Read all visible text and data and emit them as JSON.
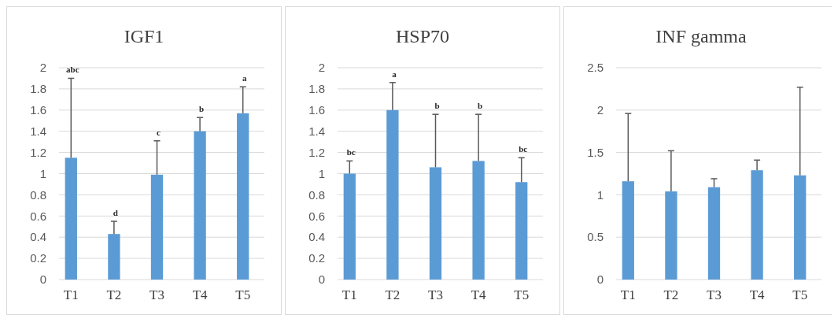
{
  "chart_data": [
    {
      "type": "bar",
      "title": "IGF1",
      "categories": [
        "T1",
        "T2",
        "T3",
        "T4",
        "T5"
      ],
      "values": [
        1.15,
        0.43,
        0.99,
        1.4,
        1.57
      ],
      "errors": [
        [
          1.15,
          1.9
        ],
        [
          0.43,
          0.55
        ],
        [
          0.99,
          1.31
        ],
        [
          1.4,
          1.53
        ],
        [
          1.57,
          1.82
        ]
      ],
      "color": "#5b9bd5",
      "ylim": [
        0,
        2
      ],
      "yticks": [
        0,
        0.2,
        0.4,
        0.6,
        0.8,
        1,
        1.2,
        1.4,
        1.6,
        1.8,
        2
      ],
      "grid": "y",
      "annotations": [
        {
          "text": "abc",
          "x": "T1",
          "y": 1.9
        },
        {
          "text": "d",
          "x": "T2",
          "y": 0.55
        },
        {
          "text": "c",
          "x": "T3",
          "y": 1.31
        },
        {
          "text": "b",
          "x": "T4",
          "y": 1.53
        },
        {
          "text": "a",
          "x": "T5",
          "y": 1.82
        }
      ]
    },
    {
      "type": "bar",
      "title": "HSP70",
      "categories": [
        "T1",
        "T2",
        "T3",
        "T4",
        "T5"
      ],
      "values": [
        1.0,
        1.6,
        1.06,
        1.12,
        0.92
      ],
      "errors": [
        [
          1.0,
          1.12
        ],
        [
          1.6,
          1.86
        ],
        [
          1.06,
          1.56
        ],
        [
          1.12,
          1.56
        ],
        [
          0.92,
          1.15
        ]
      ],
      "color": "#5b9bd5",
      "ylim": [
        0,
        2
      ],
      "yticks": [
        0,
        0.2,
        0.4,
        0.6,
        0.8,
        1,
        1.2,
        1.4,
        1.6,
        1.8,
        2
      ],
      "grid": "y",
      "annotations": [
        {
          "text": "bc",
          "x": "T1",
          "y": 1.12
        },
        {
          "text": "a",
          "x": "T2",
          "y": 1.86
        },
        {
          "text": "b",
          "x": "T3",
          "y": 1.56
        },
        {
          "text": "b",
          "x": "T4",
          "y": 1.56
        },
        {
          "text": "bc",
          "x": "T5",
          "y": 1.15
        }
      ]
    },
    {
      "type": "bar",
      "title": "INF gamma",
      "categories": [
        "T1",
        "T2",
        "T3",
        "T4",
        "T5"
      ],
      "values": [
        1.16,
        1.04,
        1.09,
        1.29,
        1.23
      ],
      "errors": [
        [
          1.16,
          1.96
        ],
        [
          1.04,
          1.52
        ],
        [
          1.09,
          1.19
        ],
        [
          1.29,
          1.41
        ],
        [
          1.23,
          2.27
        ]
      ],
      "color": "#5b9bd5",
      "ylim": [
        0,
        2.5
      ],
      "yticks": [
        0,
        0.5,
        1,
        1.5,
        2,
        2.5
      ],
      "grid": "y"
    }
  ]
}
